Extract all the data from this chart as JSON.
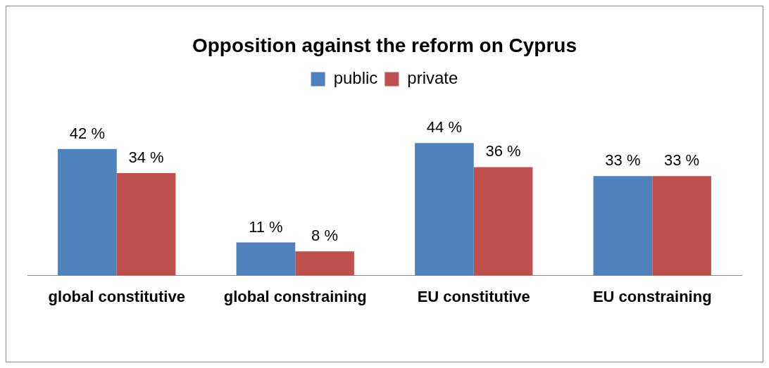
{
  "chart_data": {
    "type": "bar",
    "title": "Opposition against the reform on Cyprus",
    "categories": [
      "global constitutive",
      "global constraining",
      "EU constitutive",
      "EU constraining"
    ],
    "series": [
      {
        "name": "public",
        "color": "#4f81bd",
        "values": [
          42,
          11,
          44,
          33
        ],
        "value_labels": [
          "42 %",
          "11 %",
          "44 %",
          "33 %"
        ]
      },
      {
        "name": "private",
        "color": "#c0504d",
        "values": [
          34,
          8,
          36,
          33
        ],
        "value_labels": [
          "34 %",
          "8 %",
          "36 %",
          "33 %"
        ]
      }
    ],
    "legend": "top",
    "grid": false
  }
}
